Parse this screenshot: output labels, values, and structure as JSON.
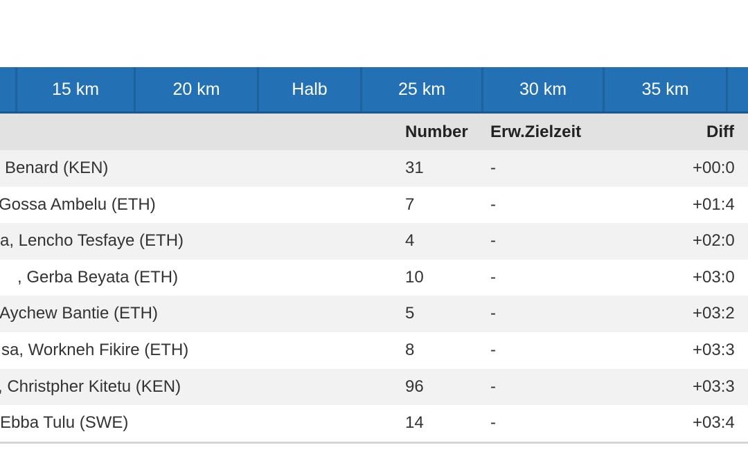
{
  "colors": {
    "tab_blue": "#2371b4",
    "tab_separator_blue": "#1d629b",
    "tab_bottom_border_blue": "#19598d",
    "header_gray": "#e2e2e2",
    "row_alt_gray": "#f2f2f2",
    "text_dark": "#333333"
  },
  "tabs": {
    "items": [
      {
        "label": ""
      },
      {
        "label": "15 km"
      },
      {
        "label": "20 km"
      },
      {
        "label": "Halb"
      },
      {
        "label": "25 km"
      },
      {
        "label": "30 km"
      },
      {
        "label": "35 km"
      },
      {
        "label": ""
      }
    ]
  },
  "table": {
    "headers": {
      "name": "",
      "number": "Number",
      "expected_finish": "Erw.Zielzeit",
      "diff": "Diff"
    },
    "rows": [
      {
        "name": "Benard (KEN)",
        "number": "31",
        "expected_finish": "-",
        "diff": "+00:0"
      },
      {
        "name": "Gossa Ambelu (ETH)",
        "number": "7",
        "expected_finish": "-",
        "diff": "+01:4"
      },
      {
        "name": "a, Lencho Tesfaye (ETH)",
        "number": "4",
        "expected_finish": "-",
        "diff": "+02:0"
      },
      {
        "name": ", Gerba Beyata (ETH)",
        "number": "10",
        "expected_finish": "-",
        "diff": "+03:0"
      },
      {
        "name": "Aychew Bantie (ETH)",
        "number": "5",
        "expected_finish": "-",
        "diff": "+03:2"
      },
      {
        "name": "sa, Workneh Fikire (ETH)",
        "number": "8",
        "expected_finish": "-",
        "diff": "+03:3"
      },
      {
        "name": ", Christpher Kitetu (KEN)",
        "number": "96",
        "expected_finish": "-",
        "diff": "+03:3"
      },
      {
        "name": "Ebba Tulu (SWE)",
        "number": "14",
        "expected_finish": "-",
        "diff": "+03:4"
      }
    ]
  }
}
